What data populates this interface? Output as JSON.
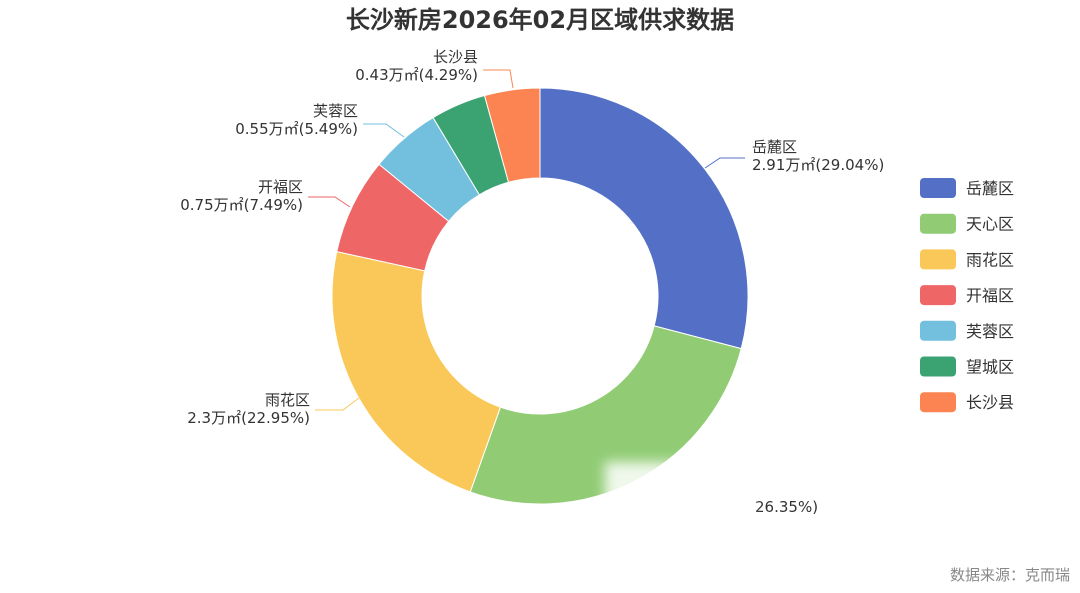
{
  "chart_data": {
    "type": "pie",
    "variant": "donut",
    "title": "长沙新房2026年02月区域供求数据",
    "unit": "万㎡",
    "series": [
      {
        "name": "岳麓区",
        "value": 2.91,
        "percent_label": "29.04%",
        "color": "#5470c6",
        "label_line1": "岳麓区",
        "label_line2": "2.91万㎡(29.04%)"
      },
      {
        "name": "天心区",
        "value": 2.64,
        "percent_label": "26.35%",
        "color": "#91cc75",
        "label_line1": "",
        "label_line2": "26.35%)"
      },
      {
        "name": "雨花区",
        "value": 2.3,
        "percent_label": "22.95%",
        "color": "#fac858",
        "label_line1": "雨花区",
        "label_line2": "2.3万㎡(22.95%)"
      },
      {
        "name": "开福区",
        "value": 0.75,
        "percent_label": "7.49%",
        "color": "#ee6666",
        "label_line1": "开福区",
        "label_line2": "0.75万㎡(7.49%)"
      },
      {
        "name": "芙蓉区",
        "value": 0.55,
        "percent_label": "5.49%",
        "color": "#73c0de",
        "label_line1": "芙蓉区",
        "label_line2": "0.55万㎡(5.49%)"
      },
      {
        "name": "望城区",
        "value": 0.43,
        "percent_label": "4.29%",
        "color": "#3ba272",
        "label_line1": "",
        "label_line2": ""
      },
      {
        "name": "长沙县",
        "value": 0.43,
        "percent_label": "4.29%",
        "color": "#fc8452",
        "label_line1": "长沙县",
        "label_line2": "0.43万㎡(4.29%)"
      }
    ],
    "legend_position": "right",
    "source": "数据来源：克而瑞"
  }
}
